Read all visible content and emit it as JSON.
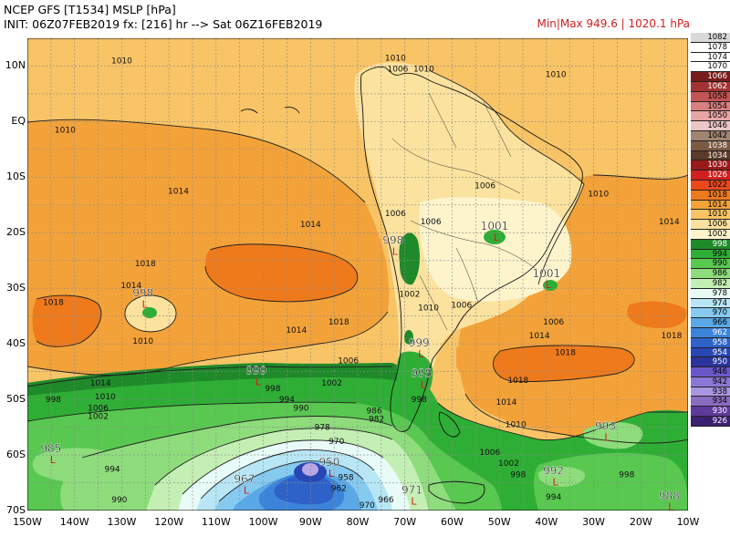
{
  "header": {
    "title": "NCEP GFS [T1534] MSLP [hPa]",
    "init": "INIT: 06Z07FEB2019 fx: [216] hr --> Sat 06Z16FEB2019",
    "minmax": "Min|Max 949.6 | 1020.1 hPa"
  },
  "lat_labels": [
    "10N",
    "EQ",
    "10S",
    "20S",
    "30S",
    "40S",
    "50S",
    "60S",
    "70S"
  ],
  "lon_labels": [
    "150W",
    "140W",
    "130W",
    "120W",
    "110W",
    "100W",
    "90W",
    "80W",
    "70W",
    "60W",
    "50W",
    "40W",
    "30W",
    "20W",
    "10W"
  ],
  "colors": {
    "land_outline": "#000000",
    "contour": "#000000",
    "low_marker": "#d21e1e"
  },
  "legend": [
    {
      "label": "1082",
      "color": "#d9d9d9"
    },
    {
      "label": "1078",
      "color": "#ffffff"
    },
    {
      "label": "1074",
      "color": "#ffffff"
    },
    {
      "label": "1070",
      "color": "#ffffff"
    },
    {
      "label": "1066",
      "color": "#7a1b1b"
    },
    {
      "label": "1062",
      "color": "#a33232"
    },
    {
      "label": "1058",
      "color": "#c45454"
    },
    {
      "label": "1054",
      "color": "#d98080"
    },
    {
      "label": "1050",
      "color": "#e6a5a5"
    },
    {
      "label": "1046",
      "color": "#ecc6c6"
    },
    {
      "label": "1042",
      "color": "#a08570"
    },
    {
      "label": "1038",
      "color": "#7c5a42"
    },
    {
      "label": "1034",
      "color": "#5a3a28"
    },
    {
      "label": "1030",
      "color": "#9a1a1a"
    },
    {
      "label": "1026",
      "color": "#d12020"
    },
    {
      "label": "1022",
      "color": "#ea4a1a"
    },
    {
      "label": "1018",
      "color": "#ee7a1c"
    },
    {
      "label": "1014",
      "color": "#f3a23a"
    },
    {
      "label": "1010",
      "color": "#f8c466"
    },
    {
      "label": "1006",
      "color": "#fbe29e"
    },
    {
      "label": "1002",
      "color": "#fdf4cc"
    },
    {
      "label": "998",
      "color": "#1f8a2a"
    },
    {
      "label": "994",
      "color": "#2fae36"
    },
    {
      "label": "990",
      "color": "#58c850"
    },
    {
      "label": "986",
      "color": "#8edc7c"
    },
    {
      "label": "982",
      "color": "#c4efb4"
    },
    {
      "label": "978",
      "color": "#e8fbf6"
    },
    {
      "label": "974",
      "color": "#b8e6f5"
    },
    {
      "label": "970",
      "color": "#86caf0"
    },
    {
      "label": "966",
      "color": "#5aa8e6"
    },
    {
      "label": "962",
      "color": "#3c84d9"
    },
    {
      "label": "958",
      "color": "#2e62c8"
    },
    {
      "label": "954",
      "color": "#2846b4"
    },
    {
      "label": "950",
      "color": "#2a349c"
    },
    {
      "label": "946",
      "color": "#6b58c8"
    },
    {
      "label": "942",
      "color": "#8a78d6"
    },
    {
      "label": "938",
      "color": "#a896e0"
    },
    {
      "label": "934",
      "color": "#8a6cc0"
    },
    {
      "label": "930",
      "color": "#5e3a9c"
    },
    {
      "label": "926",
      "color": "#3c2070"
    }
  ],
  "contour_labels": [
    {
      "text": "1010",
      "lon": -130,
      "lat": 10.5
    },
    {
      "text": "1006",
      "lon": -71.5,
      "lat": 9
    },
    {
      "text": "1010",
      "lon": -72,
      "lat": 11
    },
    {
      "text": "1010",
      "lon": -66,
      "lat": 9
    },
    {
      "text": "1010",
      "lon": -38,
      "lat": 8
    },
    {
      "text": "1010",
      "lon": -142,
      "lat": -2
    },
    {
      "text": "1014",
      "lon": -118,
      "lat": -13
    },
    {
      "text": "1014",
      "lon": -90,
      "lat": -19
    },
    {
      "text": "1006",
      "lon": -53,
      "lat": -12
    },
    {
      "text": "1006",
      "lon": -72,
      "lat": -17
    },
    {
      "text": "1006",
      "lon": -64.5,
      "lat": -18.5
    },
    {
      "text": "1010",
      "lon": -29,
      "lat": -13.5
    },
    {
      "text": "1014",
      "lon": -14,
      "lat": -18.5
    },
    {
      "text": "1018",
      "lon": -125,
      "lat": -26
    },
    {
      "text": "1014",
      "lon": -128,
      "lat": -30
    },
    {
      "text": "1018",
      "lon": -144.5,
      "lat": -33
    },
    {
      "text": "1010",
      "lon": -125.5,
      "lat": -40
    },
    {
      "text": "1014",
      "lon": -93,
      "lat": -38
    },
    {
      "text": "1018",
      "lon": -84,
      "lat": -36.5
    },
    {
      "text": "1010",
      "lon": -65,
      "lat": -34
    },
    {
      "text": "1002",
      "lon": -69,
      "lat": -31.5
    },
    {
      "text": "1006",
      "lon": -58,
      "lat": -33.5
    },
    {
      "text": "1006",
      "lon": -38.5,
      "lat": -36.5
    },
    {
      "text": "1014",
      "lon": -41.5,
      "lat": -39
    },
    {
      "text": "1018",
      "lon": -36,
      "lat": -42
    },
    {
      "text": "1018",
      "lon": -13.5,
      "lat": -39
    },
    {
      "text": "1018",
      "lon": -46,
      "lat": -47
    },
    {
      "text": "1014",
      "lon": -48.5,
      "lat": -51
    },
    {
      "text": "1010",
      "lon": -46.5,
      "lat": -55
    },
    {
      "text": "1006",
      "lon": -82,
      "lat": -43.5
    },
    {
      "text": "1014",
      "lon": -134.5,
      "lat": -47.5
    },
    {
      "text": "1010",
      "lon": -133.5,
      "lat": -50
    },
    {
      "text": "1006",
      "lon": -135,
      "lat": -52
    },
    {
      "text": "1002",
      "lon": -135,
      "lat": -53.5
    },
    {
      "text": "998",
      "lon": -144.5,
      "lat": -50.5
    },
    {
      "text": "998",
      "lon": -98,
      "lat": -48.5
    },
    {
      "text": "1002",
      "lon": -85.5,
      "lat": -47.5
    },
    {
      "text": "994",
      "lon": -95,
      "lat": -50.5
    },
    {
      "text": "990",
      "lon": -92,
      "lat": -52
    },
    {
      "text": "986",
      "lon": -76.5,
      "lat": -52.5
    },
    {
      "text": "982",
      "lon": -76,
      "lat": -54
    },
    {
      "text": "978",
      "lon": -87.5,
      "lat": -55.5
    },
    {
      "text": "970",
      "lon": -84.5,
      "lat": -58
    },
    {
      "text": "958",
      "lon": -82.5,
      "lat": -64.5
    },
    {
      "text": "962",
      "lon": -84,
      "lat": -66.5
    },
    {
      "text": "966",
      "lon": -74,
      "lat": -68.5
    },
    {
      "text": "970",
      "lon": -78,
      "lat": -69.5
    },
    {
      "text": "990",
      "lon": -130.5,
      "lat": -68.5
    },
    {
      "text": "994",
      "lon": -132,
      "lat": -63
    },
    {
      "text": "998",
      "lon": -67,
      "lat": -50.5
    },
    {
      "text": "1006",
      "lon": -52,
      "lat": -60
    },
    {
      "text": "1002",
      "lon": -48,
      "lat": -62
    },
    {
      "text": "998",
      "lon": -46,
      "lat": -64
    },
    {
      "text": "994",
      "lon": -38.5,
      "lat": -68
    },
    {
      "text": "998",
      "lon": -23,
      "lat": -64
    }
  ],
  "pressure_centers": [
    {
      "value": "1001",
      "lon": -51,
      "lat": -19.5,
      "type": "L"
    },
    {
      "value": "1001",
      "lon": -40,
      "lat": -28,
      "type": "L"
    },
    {
      "value": "998",
      "lon": -125.5,
      "lat": -31.5,
      "type": "L"
    },
    {
      "value": "998",
      "lon": -72.5,
      "lat": -22,
      "type": "L"
    },
    {
      "value": "999",
      "lon": -101.5,
      "lat": -45.5,
      "type": "L"
    },
    {
      "value": "999",
      "lon": -67,
      "lat": -40.5,
      "type": "L"
    },
    {
      "value": "995",
      "lon": -66.5,
      "lat": -46,
      "type": "L"
    },
    {
      "value": "985",
      "lon": -145,
      "lat": -59.5,
      "type": "L"
    },
    {
      "value": "967",
      "lon": -104,
      "lat": -65,
      "type": "L"
    },
    {
      "value": "950",
      "lon": -86,
      "lat": -62,
      "type": "L"
    },
    {
      "value": "971",
      "lon": -68.5,
      "lat": -67,
      "type": "L"
    },
    {
      "value": "993",
      "lon": -27.5,
      "lat": -55.5,
      "type": "L"
    },
    {
      "value": "992",
      "lon": -38.5,
      "lat": -63.5,
      "type": "L"
    },
    {
      "value": "988",
      "lon": -14,
      "lat": -68,
      "type": "L"
    }
  ]
}
